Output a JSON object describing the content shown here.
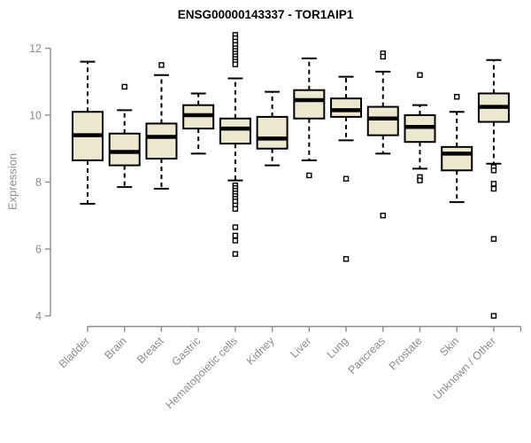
{
  "chart_data": {
    "type": "boxplot",
    "title": "ENSG00000143337 - TOR1AIP1",
    "ylabel": "Expression",
    "yticks": [
      4,
      6,
      8,
      10,
      12
    ],
    "ylim": [
      3.7,
      12.55
    ],
    "grid": false,
    "categories": [
      "Bladder",
      "Brain",
      "Breast",
      "Gastric",
      "Hematopoietic cells",
      "Kidney",
      "Liver",
      "Lung",
      "Pancreas",
      "Prostate",
      "Skin",
      "Unknown / Other"
    ],
    "boxes": [
      {
        "category": "Bladder",
        "low": 7.35,
        "q1": 8.65,
        "median": 9.4,
        "q3": 10.1,
        "high": 11.6,
        "outliers": []
      },
      {
        "category": "Brain",
        "low": 7.85,
        "q1": 8.5,
        "median": 8.9,
        "q3": 9.45,
        "high": 10.15,
        "outliers": [
          10.85
        ]
      },
      {
        "category": "Breast",
        "low": 7.8,
        "q1": 8.7,
        "median": 9.35,
        "q3": 9.75,
        "high": 11.2,
        "outliers": [
          11.5
        ]
      },
      {
        "category": "Gastric",
        "low": 8.85,
        "q1": 9.6,
        "median": 10.0,
        "q3": 10.3,
        "high": 10.65,
        "outliers": []
      },
      {
        "category": "Hematopoietic cells",
        "low": 8.05,
        "q1": 9.15,
        "median": 9.6,
        "q3": 9.9,
        "high": 11.1,
        "outliers": [
          12.4,
          12.3,
          12.2,
          12.1,
          12.0,
          11.92,
          11.84,
          11.76,
          11.68,
          11.6,
          11.52,
          7.9,
          7.82,
          7.74,
          7.66,
          7.58,
          7.5,
          7.42,
          7.3,
          7.2,
          6.65,
          6.4,
          6.25,
          5.85
        ]
      },
      {
        "category": "Kidney",
        "low": 8.5,
        "q1": 9.0,
        "median": 9.3,
        "q3": 9.95,
        "high": 10.7,
        "outliers": []
      },
      {
        "category": "Liver",
        "low": 8.65,
        "q1": 9.9,
        "median": 10.45,
        "q3": 10.75,
        "high": 11.7,
        "outliers": [
          8.2
        ]
      },
      {
        "category": "Lung",
        "low": 9.25,
        "q1": 9.95,
        "median": 10.15,
        "q3": 10.5,
        "high": 11.15,
        "outliers": [
          8.1,
          5.7
        ]
      },
      {
        "category": "Pancreas",
        "low": 8.85,
        "q1": 9.4,
        "median": 9.9,
        "q3": 10.25,
        "high": 11.3,
        "outliers": [
          11.85,
          11.75,
          7.0
        ]
      },
      {
        "category": "Prostate",
        "low": 8.4,
        "q1": 9.2,
        "median": 9.65,
        "q3": 10.0,
        "high": 10.3,
        "outliers": [
          11.2,
          8.15,
          8.05
        ]
      },
      {
        "category": "Skin",
        "low": 7.4,
        "q1": 8.35,
        "median": 8.85,
        "q3": 9.05,
        "high": 10.1,
        "outliers": [
          10.55
        ]
      },
      {
        "category": "Unknown / Other",
        "low": 8.55,
        "q1": 9.8,
        "median": 10.25,
        "q3": 10.65,
        "high": 11.65,
        "outliers": [
          8.45,
          8.35,
          7.95,
          7.8,
          6.3,
          4.0
        ]
      }
    ],
    "colors": {
      "box_fill": "#ECE8CF",
      "box_border": "#000000",
      "median": "#000000",
      "whisker": "#000000",
      "outlier_fill": "#ffffff",
      "outlier_border": "#000000",
      "axis": "#8c8c8c",
      "tick_text": "#8c8c8c",
      "title_text": "#000000",
      "background": "#ffffff"
    }
  }
}
